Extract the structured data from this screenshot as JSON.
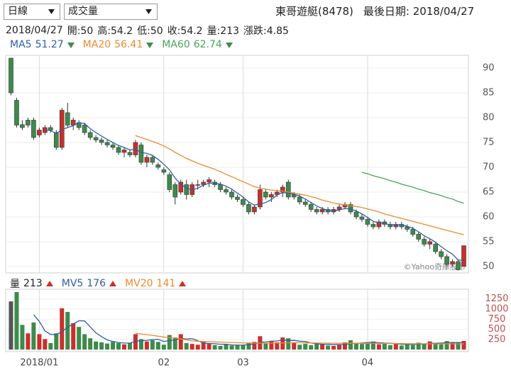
{
  "header": {
    "period_select": "日線",
    "indicator_select": "成交量",
    "stock": "東哥遊艇(8478)",
    "last_date_label": "最後日期: 2018/04/27",
    "watermark": "©Yahoo奇摩股市"
  },
  "info": {
    "date": "2018/04/27",
    "labels": {
      "open": "開:",
      "high": "高:",
      "low": "低:",
      "close": "收:",
      "volume": "量:",
      "change": "漲跌:"
    },
    "change": 4.85
  },
  "chart_data": {
    "type": "candlestick",
    "up_color": "#c9302c",
    "down_color": "#3d8b4a",
    "grid": true,
    "categories": [
      null,
      null,
      null,
      null,
      null,
      "2018/01",
      null,
      null,
      null,
      null,
      null,
      null,
      null,
      null,
      null,
      null,
      null,
      null,
      null,
      null,
      null,
      null,
      null,
      null,
      null,
      null,
      null,
      "02",
      null,
      null,
      null,
      null,
      null,
      null,
      null,
      null,
      null,
      null,
      null,
      null,
      null,
      "03",
      null,
      null,
      null,
      null,
      null,
      null,
      null,
      null,
      null,
      null,
      null,
      null,
      null,
      null,
      null,
      null,
      null,
      null,
      null,
      null,
      null,
      "04",
      null,
      null,
      null,
      null,
      null,
      null,
      null,
      null,
      null,
      null,
      null,
      null,
      null,
      null,
      null,
      null,
      null
    ],
    "open": [
      92,
      83.5,
      78.6,
      79.5,
      79.5,
      76.5,
      77,
      78,
      77,
      74,
      81,
      78.5,
      79,
      78.5,
      77,
      76,
      75.5,
      75,
      74.5,
      74,
      73,
      73,
      72.5,
      74.5,
      71,
      72,
      70.5,
      69.5,
      68.5,
      66.5,
      65,
      66.5,
      64.5,
      66.5,
      66.5,
      67,
      67,
      66.5,
      65.5,
      65,
      64,
      63.5,
      62.5,
      61,
      62,
      65,
      64,
      64.5,
      65,
      67,
      64.5,
      64,
      63,
      62.5,
      61.5,
      61,
      61.5,
      61,
      61.5,
      62,
      62.5,
      61,
      60,
      59.5,
      58.5,
      58,
      59,
      58.5,
      58,
      58.5,
      58,
      57.5,
      56.5,
      55.5,
      54.5,
      54.5,
      53,
      52,
      50.5,
      51,
      50
    ],
    "high": [
      92,
      84,
      79.5,
      80,
      80,
      78,
      78.5,
      78.5,
      77.5,
      82,
      83,
      80,
      79.5,
      79,
      77.5,
      76.5,
      76,
      75.5,
      75,
      74.5,
      74,
      73.5,
      75.5,
      75,
      72.5,
      72.5,
      71,
      70,
      69,
      67,
      67.5,
      67.5,
      67,
      67.5,
      67.5,
      68,
      67.5,
      67,
      66,
      65.5,
      64.5,
      64,
      63,
      62.5,
      66.5,
      65.5,
      65,
      65.5,
      66.5,
      67.5,
      65,
      64.5,
      63.5,
      63,
      62,
      62,
      62,
      62,
      62.5,
      63,
      63,
      61.5,
      60.5,
      60,
      59,
      59.5,
      59.5,
      59,
      59,
      59,
      58.5,
      58,
      57,
      56,
      55.5,
      55,
      53.5,
      52.5,
      51.5,
      51.5,
      54.2
    ],
    "low": [
      84.5,
      78,
      77.5,
      78,
      75.5,
      76,
      76.5,
      77,
      73.5,
      73.5,
      78,
      77.5,
      77.5,
      76.5,
      75.5,
      75,
      74.5,
      74,
      73.5,
      72.5,
      72,
      72,
      72,
      70.5,
      70,
      70.5,
      69.5,
      68.5,
      65,
      62.5,
      64.5,
      63.5,
      64,
      65.5,
      66,
      66,
      66,
      65,
      64.5,
      63.5,
      63,
      62,
      60.5,
      60.5,
      61.5,
      63.5,
      63,
      64,
      64,
      63.5,
      63.5,
      62.5,
      62,
      61,
      60.5,
      60.5,
      60.5,
      60.5,
      61,
      61.5,
      60.5,
      59.5,
      59,
      58,
      57.5,
      57.5,
      58,
      57.5,
      57.5,
      57.5,
      57,
      56,
      55,
      54,
      53.5,
      52.5,
      51.5,
      50,
      50,
      49.2,
      50
    ],
    "close": [
      85,
      78.5,
      78,
      78.5,
      76,
      77.5,
      78,
      77.5,
      74,
      81.5,
      78.5,
      79.5,
      78,
      77,
      76,
      75.5,
      75,
      74.5,
      74,
      73,
      73.5,
      72.5,
      75,
      71,
      72,
      71,
      70,
      69,
      65.5,
      64,
      67,
      64.5,
      66.5,
      66.5,
      67,
      67.5,
      66.5,
      65.5,
      65,
      64,
      63.5,
      62.5,
      61,
      62,
      65.5,
      64,
      64.5,
      65,
      66,
      64,
      64,
      63,
      62.5,
      61.5,
      61,
      61.5,
      61,
      61.5,
      62,
      62.5,
      61,
      60,
      59.5,
      58.5,
      58,
      59,
      58.5,
      58,
      58.5,
      58,
      57.5,
      56.5,
      55.5,
      54.5,
      55,
      53,
      52,
      50.5,
      51,
      49.35,
      54.2
    ],
    "ylim": [
      48.71,
      92.57
    ],
    "yticks": [
      50,
      55,
      60,
      65,
      70,
      75,
      80,
      85,
      90
    ],
    "series": [
      {
        "name": "MA5",
        "color": "#2f5ea8",
        "values": [
          null,
          null,
          null,
          null,
          null,
          null,
          77.6,
          77.4,
          76.8,
          77.6,
          78.0,
          78.4,
          79.0,
          78.8,
          77.8,
          77.0,
          76.3,
          75.6,
          75.0,
          74.4,
          74.0,
          73.5,
          73.6,
          73.0,
          72.8,
          72.4,
          71.6,
          70.6,
          69.5,
          67.8,
          66.6,
          65.8,
          65.4,
          65.8,
          66.4,
          66.8,
          66.8,
          66.6,
          66.2,
          65.6,
          64.8,
          64.0,
          63.0,
          62.4,
          62.6,
          62.9,
          63.5,
          64.4,
          64.9,
          64.8,
          64.6,
          64.2,
          63.6,
          62.9,
          62.2,
          61.7,
          61.3,
          61.2,
          61.4,
          61.7,
          61.6,
          61.2,
          60.6,
          59.9,
          59.1,
          58.8,
          58.7,
          58.4,
          58.4,
          58.4,
          58.1,
          57.7,
          57.0,
          56.2,
          55.6,
          54.9,
          54.0,
          53.2,
          52.5,
          51.3,
          51.27
        ]
      },
      {
        "name": "MA20",
        "color": "#ee8a2c",
        "values": [
          null,
          null,
          null,
          null,
          null,
          null,
          null,
          null,
          null,
          null,
          null,
          null,
          null,
          null,
          null,
          null,
          null,
          null,
          null,
          null,
          null,
          null,
          76.4,
          76.0,
          75.6,
          75.2,
          74.8,
          74.3,
          73.7,
          73.0,
          72.4,
          71.8,
          71.3,
          70.8,
          70.4,
          70.0,
          69.6,
          69.1,
          68.6,
          68.1,
          67.6,
          67.1,
          66.6,
          66.1,
          65.8,
          65.6,
          65.4,
          65.3,
          65.2,
          65.0,
          64.8,
          64.6,
          64.4,
          64.1,
          63.8,
          63.4,
          63.1,
          62.8,
          62.6,
          62.4,
          62.3,
          62.1,
          61.9,
          61.6,
          61.3,
          61.0,
          60.6,
          60.3,
          60.0,
          59.7,
          59.4,
          59.1,
          58.8,
          58.5,
          58.2,
          57.9,
          57.6,
          57.3,
          57.0,
          56.7,
          56.41
        ]
      },
      {
        "name": "MA60",
        "color": "#4aa35a",
        "values": [
          null,
          null,
          null,
          null,
          null,
          null,
          null,
          null,
          null,
          null,
          null,
          null,
          null,
          null,
          null,
          null,
          null,
          null,
          null,
          null,
          null,
          null,
          null,
          null,
          null,
          null,
          null,
          null,
          null,
          null,
          null,
          null,
          null,
          null,
          null,
          null,
          null,
          null,
          null,
          null,
          null,
          null,
          null,
          null,
          null,
          null,
          null,
          null,
          null,
          null,
          null,
          null,
          null,
          null,
          null,
          null,
          null,
          null,
          null,
          null,
          null,
          null,
          69.0,
          68.7,
          68.3,
          68.0,
          67.7,
          67.3,
          67.0,
          66.6,
          66.3,
          66.0,
          65.6,
          65.3,
          64.9,
          64.6,
          64.3,
          63.9,
          63.6,
          63.1,
          62.74
        ]
      }
    ],
    "volume": {
      "name": "量",
      "flat_color": "#555555",
      "ylim": [
        -50,
        1490
      ],
      "yticks": [
        250,
        500,
        750,
        1000,
        1250
      ],
      "values": [
        1190,
        1420,
        610,
        400,
        670,
        380,
        260,
        160,
        400,
        1020,
        930,
        650,
        560,
        380,
        280,
        200,
        180,
        150,
        190,
        160,
        130,
        170,
        380,
        260,
        200,
        230,
        190,
        120,
        360,
        300,
        380,
        160,
        140,
        120,
        190,
        150,
        110,
        90,
        130,
        100,
        120,
        110,
        160,
        190,
        330,
        150,
        210,
        180,
        300,
        280,
        160,
        120,
        140,
        110,
        170,
        130,
        100,
        90,
        120,
        180,
        230,
        150,
        140,
        180,
        200,
        130,
        150,
        110,
        160,
        100,
        140,
        110,
        170,
        150,
        200,
        160,
        130,
        210,
        170,
        180,
        213
      ],
      "series": [
        {
          "name": "MV5",
          "color": "#2f5ea8",
          "values": [
            null,
            null,
            null,
            null,
            858,
            696,
            464,
            374,
            374,
            444,
            554,
            632,
            712,
            708,
            560,
            414,
            320,
            238,
            200,
            176,
            162,
            160,
            206,
            218,
            228,
            248,
            252,
            200,
            220,
            240,
            270,
            264,
            268,
            220,
            160,
            152,
            144,
            132,
            134,
            116,
            110,
            110,
            124,
            136,
            182,
            188,
            208,
            212,
            234,
            224,
            226,
            208,
            200,
            162,
            140,
            134,
            130,
            120,
            122,
            124,
            150,
            154,
            164,
            176,
            180,
            170,
            160,
            154,
            150,
            130,
            132,
            124,
            136,
            134,
            154,
            156,
            162,
            170,
            174,
            174,
            176
          ]
        },
        {
          "name": "MV20",
          "color": "#ee8a2c",
          "values": [
            null,
            null,
            null,
            null,
            null,
            null,
            null,
            null,
            null,
            null,
            null,
            null,
            null,
            null,
            null,
            null,
            null,
            null,
            null,
            null,
            null,
            null,
            400,
            385,
            370,
            350,
            330,
            310,
            295,
            280,
            262,
            240,
            215,
            205,
            200,
            195,
            190,
            185,
            180,
            175,
            170,
            165,
            163,
            160,
            160,
            158,
            158,
            160,
            164,
            168,
            170,
            168,
            166,
            164,
            162,
            160,
            160,
            158,
            156,
            156,
            158,
            157,
            155,
            154,
            153,
            152,
            150,
            149,
            148,
            147,
            146,
            145,
            145,
            144,
            144,
            143,
            143,
            142,
            142,
            141,
            141
          ]
        }
      ]
    }
  }
}
